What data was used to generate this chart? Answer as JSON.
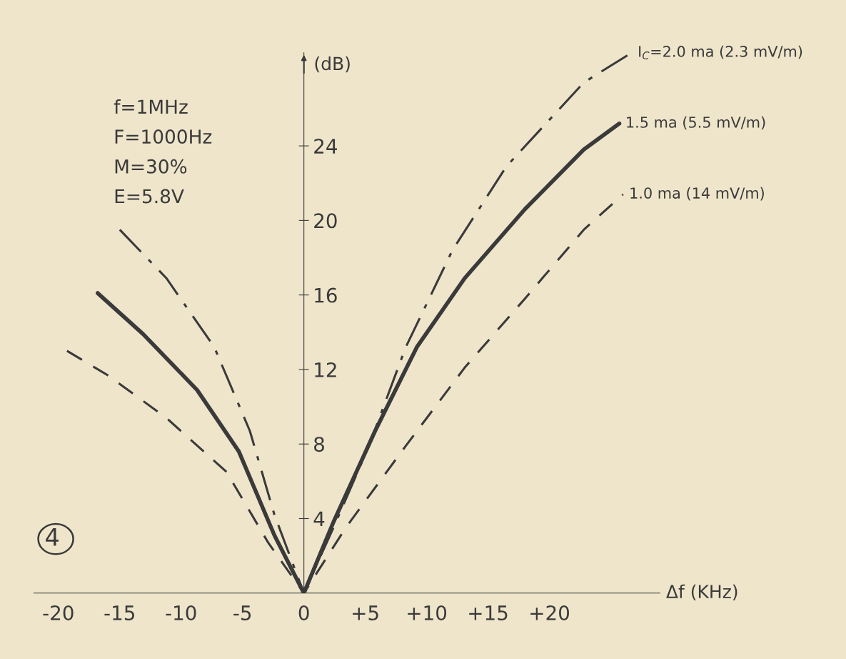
{
  "chart_data": {
    "type": "line",
    "xlabel": "Δf (KHz)",
    "ylabel": "(dB)",
    "xlim": [
      -22,
      29
    ],
    "ylim": [
      0,
      29
    ],
    "xticks": [
      {
        "value": -20,
        "label": "-20"
      },
      {
        "value": -15,
        "label": "-15"
      },
      {
        "value": -10,
        "label": "-10"
      },
      {
        "value": -5,
        "label": "-5"
      },
      0,
      {
        "value": 5,
        "label": "+5"
      },
      {
        "value": 10,
        "label": "+10"
      },
      {
        "value": 15,
        "label": "+15"
      },
      {
        "value": 20,
        "label": "+20"
      }
    ],
    "yticks": [
      4,
      8,
      12,
      16,
      20,
      24
    ],
    "grid": false,
    "legend": false,
    "marker": "none",
    "series": [
      {
        "name": "I$_{C}$=2.0 ma (2.3 mV/m)",
        "color": "#3a3a3a",
        "line_style": "dashdot",
        "x": [
          -15,
          -11.2,
          -7.3,
          -4.4,
          -2.4,
          0,
          2.4,
          5.3,
          8.3,
          12.1,
          16.5,
          22.8,
          26.7
        ],
        "values": [
          19.5,
          16.9,
          13.2,
          8.7,
          4.2,
          0,
          3.5,
          7.9,
          13.2,
          18.4,
          22.9,
          27.4,
          29
        ]
      },
      {
        "name": "1.5 ma (5.5 mV/m)",
        "color": "#3a3a3a",
        "line_style": "solid",
        "x": [
          -16.8,
          -13.1,
          -8.7,
          -5.3,
          -2.4,
          0,
          2.4,
          5.8,
          9.2,
          13.1,
          18,
          22.8,
          25.7
        ],
        "values": [
          16.1,
          13.9,
          10.9,
          7.6,
          3.1,
          0,
          3.8,
          8.7,
          13.2,
          16.9,
          20.6,
          23.8,
          25.2
        ]
      },
      {
        "name": "1.0 ma (14 mV/m)",
        "color": "#3a3a3a",
        "line_style": "dashed",
        "x": [
          -19.3,
          -16,
          -11.2,
          -6.3,
          -2.9,
          0,
          3.4,
          8.3,
          13.1,
          18,
          22.8,
          26
        ],
        "values": [
          13,
          11.7,
          9.4,
          6.5,
          2.7,
          0,
          3.5,
          7.9,
          12.1,
          15.8,
          19.5,
          21.4
        ]
      }
    ],
    "annotations": [
      "f=1MHz",
      "F=1000Hz",
      "M=30%",
      "E=5.8V",
      "4"
    ]
  }
}
